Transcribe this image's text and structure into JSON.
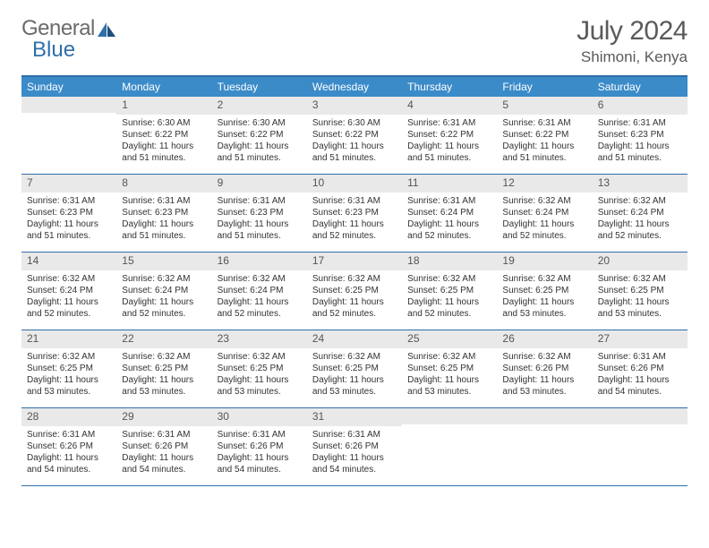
{
  "brand": {
    "word1": "General",
    "word2": "Blue"
  },
  "title": "July 2024",
  "location": "Shimoni, Kenya",
  "colors": {
    "header_blue": "#3b8bc9",
    "border_blue": "#2f6fa8",
    "daynum_bg": "#e9e9e9",
    "text": "#333333",
    "title_gray": "#5a5a5a"
  },
  "weekdays": [
    "Sunday",
    "Monday",
    "Tuesday",
    "Wednesday",
    "Thursday",
    "Friday",
    "Saturday"
  ],
  "weeks": [
    [
      {
        "day": "",
        "sunrise": "",
        "sunset": "",
        "daylight": ""
      },
      {
        "day": "1",
        "sunrise": "Sunrise: 6:30 AM",
        "sunset": "Sunset: 6:22 PM",
        "daylight": "Daylight: 11 hours and 51 minutes."
      },
      {
        "day": "2",
        "sunrise": "Sunrise: 6:30 AM",
        "sunset": "Sunset: 6:22 PM",
        "daylight": "Daylight: 11 hours and 51 minutes."
      },
      {
        "day": "3",
        "sunrise": "Sunrise: 6:30 AM",
        "sunset": "Sunset: 6:22 PM",
        "daylight": "Daylight: 11 hours and 51 minutes."
      },
      {
        "day": "4",
        "sunrise": "Sunrise: 6:31 AM",
        "sunset": "Sunset: 6:22 PM",
        "daylight": "Daylight: 11 hours and 51 minutes."
      },
      {
        "day": "5",
        "sunrise": "Sunrise: 6:31 AM",
        "sunset": "Sunset: 6:22 PM",
        "daylight": "Daylight: 11 hours and 51 minutes."
      },
      {
        "day": "6",
        "sunrise": "Sunrise: 6:31 AM",
        "sunset": "Sunset: 6:23 PM",
        "daylight": "Daylight: 11 hours and 51 minutes."
      }
    ],
    [
      {
        "day": "7",
        "sunrise": "Sunrise: 6:31 AM",
        "sunset": "Sunset: 6:23 PM",
        "daylight": "Daylight: 11 hours and 51 minutes."
      },
      {
        "day": "8",
        "sunrise": "Sunrise: 6:31 AM",
        "sunset": "Sunset: 6:23 PM",
        "daylight": "Daylight: 11 hours and 51 minutes."
      },
      {
        "day": "9",
        "sunrise": "Sunrise: 6:31 AM",
        "sunset": "Sunset: 6:23 PM",
        "daylight": "Daylight: 11 hours and 51 minutes."
      },
      {
        "day": "10",
        "sunrise": "Sunrise: 6:31 AM",
        "sunset": "Sunset: 6:23 PM",
        "daylight": "Daylight: 11 hours and 52 minutes."
      },
      {
        "day": "11",
        "sunrise": "Sunrise: 6:31 AM",
        "sunset": "Sunset: 6:24 PM",
        "daylight": "Daylight: 11 hours and 52 minutes."
      },
      {
        "day": "12",
        "sunrise": "Sunrise: 6:32 AM",
        "sunset": "Sunset: 6:24 PM",
        "daylight": "Daylight: 11 hours and 52 minutes."
      },
      {
        "day": "13",
        "sunrise": "Sunrise: 6:32 AM",
        "sunset": "Sunset: 6:24 PM",
        "daylight": "Daylight: 11 hours and 52 minutes."
      }
    ],
    [
      {
        "day": "14",
        "sunrise": "Sunrise: 6:32 AM",
        "sunset": "Sunset: 6:24 PM",
        "daylight": "Daylight: 11 hours and 52 minutes."
      },
      {
        "day": "15",
        "sunrise": "Sunrise: 6:32 AM",
        "sunset": "Sunset: 6:24 PM",
        "daylight": "Daylight: 11 hours and 52 minutes."
      },
      {
        "day": "16",
        "sunrise": "Sunrise: 6:32 AM",
        "sunset": "Sunset: 6:24 PM",
        "daylight": "Daylight: 11 hours and 52 minutes."
      },
      {
        "day": "17",
        "sunrise": "Sunrise: 6:32 AM",
        "sunset": "Sunset: 6:25 PM",
        "daylight": "Daylight: 11 hours and 52 minutes."
      },
      {
        "day": "18",
        "sunrise": "Sunrise: 6:32 AM",
        "sunset": "Sunset: 6:25 PM",
        "daylight": "Daylight: 11 hours and 52 minutes."
      },
      {
        "day": "19",
        "sunrise": "Sunrise: 6:32 AM",
        "sunset": "Sunset: 6:25 PM",
        "daylight": "Daylight: 11 hours and 53 minutes."
      },
      {
        "day": "20",
        "sunrise": "Sunrise: 6:32 AM",
        "sunset": "Sunset: 6:25 PM",
        "daylight": "Daylight: 11 hours and 53 minutes."
      }
    ],
    [
      {
        "day": "21",
        "sunrise": "Sunrise: 6:32 AM",
        "sunset": "Sunset: 6:25 PM",
        "daylight": "Daylight: 11 hours and 53 minutes."
      },
      {
        "day": "22",
        "sunrise": "Sunrise: 6:32 AM",
        "sunset": "Sunset: 6:25 PM",
        "daylight": "Daylight: 11 hours and 53 minutes."
      },
      {
        "day": "23",
        "sunrise": "Sunrise: 6:32 AM",
        "sunset": "Sunset: 6:25 PM",
        "daylight": "Daylight: 11 hours and 53 minutes."
      },
      {
        "day": "24",
        "sunrise": "Sunrise: 6:32 AM",
        "sunset": "Sunset: 6:25 PM",
        "daylight": "Daylight: 11 hours and 53 minutes."
      },
      {
        "day": "25",
        "sunrise": "Sunrise: 6:32 AM",
        "sunset": "Sunset: 6:25 PM",
        "daylight": "Daylight: 11 hours and 53 minutes."
      },
      {
        "day": "26",
        "sunrise": "Sunrise: 6:32 AM",
        "sunset": "Sunset: 6:26 PM",
        "daylight": "Daylight: 11 hours and 53 minutes."
      },
      {
        "day": "27",
        "sunrise": "Sunrise: 6:31 AM",
        "sunset": "Sunset: 6:26 PM",
        "daylight": "Daylight: 11 hours and 54 minutes."
      }
    ],
    [
      {
        "day": "28",
        "sunrise": "Sunrise: 6:31 AM",
        "sunset": "Sunset: 6:26 PM",
        "daylight": "Daylight: 11 hours and 54 minutes."
      },
      {
        "day": "29",
        "sunrise": "Sunrise: 6:31 AM",
        "sunset": "Sunset: 6:26 PM",
        "daylight": "Daylight: 11 hours and 54 minutes."
      },
      {
        "day": "30",
        "sunrise": "Sunrise: 6:31 AM",
        "sunset": "Sunset: 6:26 PM",
        "daylight": "Daylight: 11 hours and 54 minutes."
      },
      {
        "day": "31",
        "sunrise": "Sunrise: 6:31 AM",
        "sunset": "Sunset: 6:26 PM",
        "daylight": "Daylight: 11 hours and 54 minutes."
      },
      {
        "day": "",
        "sunrise": "",
        "sunset": "",
        "daylight": ""
      },
      {
        "day": "",
        "sunrise": "",
        "sunset": "",
        "daylight": ""
      },
      {
        "day": "",
        "sunrise": "",
        "sunset": "",
        "daylight": ""
      }
    ]
  ]
}
